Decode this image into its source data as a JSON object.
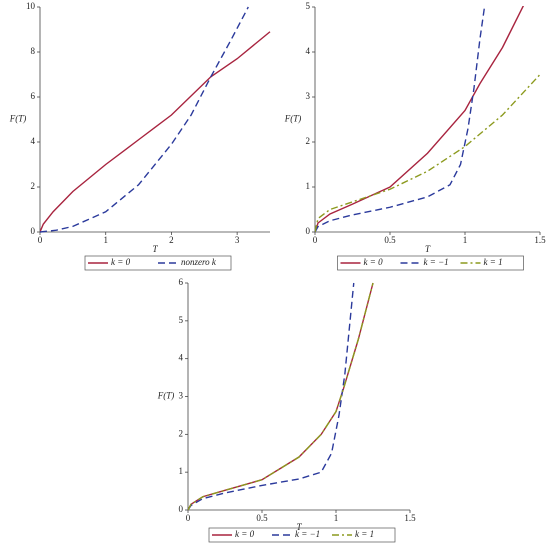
{
  "chart_data": [
    {
      "type": "line",
      "xlabel": "T",
      "ylabel": "F(T)",
      "xlim": [
        0,
        3.5
      ],
      "ylim": [
        0,
        10
      ],
      "xticks": [
        0,
        1,
        2,
        3
      ],
      "yticks": [
        0,
        2,
        4,
        6,
        8,
        10
      ],
      "series": [
        {
          "name": "k = 0",
          "color": "#a8243f",
          "dash": "solid",
          "x": [
            0,
            0.05,
            0.2,
            0.5,
            1,
            1.5,
            2,
            2.6,
            3,
            3.5
          ],
          "values": [
            0,
            0.35,
            0.9,
            1.8,
            3.0,
            4.1,
            5.2,
            6.9,
            7.7,
            8.9
          ]
        },
        {
          "name": "nonzero k",
          "color": "#2b3a9c",
          "dash": "dashed",
          "x": [
            0,
            0.25,
            0.5,
            1,
            1.5,
            2,
            2.3,
            2.6,
            2.9,
            3.17
          ],
          "values": [
            0,
            0.08,
            0.25,
            0.9,
            2.1,
            3.9,
            5.2,
            6.9,
            8.5,
            10
          ]
        }
      ]
    },
    {
      "type": "line",
      "xlabel": "T",
      "ylabel": "F(T)",
      "xlim": [
        0,
        1.5
      ],
      "ylim": [
        0,
        5
      ],
      "xticks": [
        0,
        0.5,
        1,
        1.5
      ],
      "yticks": [
        0,
        1,
        2,
        3,
        4,
        5
      ],
      "series": [
        {
          "name": "k = 0",
          "color": "#a8243f",
          "dash": "solid",
          "x": [
            0,
            0.02,
            0.1,
            0.25,
            0.5,
            0.75,
            1,
            1.1,
            1.25,
            1.4
          ],
          "values": [
            0,
            0.2,
            0.4,
            0.62,
            1.0,
            1.75,
            2.7,
            3.3,
            4.1,
            5.1
          ]
        },
        {
          "name": "k = −1",
          "color": "#2b3a9c",
          "dash": "dashed",
          "x": [
            0,
            0.02,
            0.1,
            0.25,
            0.5,
            0.75,
            0.9,
            0.97,
            1.02,
            1.06,
            1.1,
            1.13
          ],
          "values": [
            0,
            0.12,
            0.25,
            0.38,
            0.55,
            0.78,
            1.05,
            1.5,
            2.3,
            3.2,
            4.3,
            5
          ]
        },
        {
          "name": "k = 1",
          "color": "#8c9a1e",
          "dash": "dashdot",
          "x": [
            0,
            0.02,
            0.1,
            0.25,
            0.5,
            0.75,
            1,
            1.25,
            1.5
          ],
          "values": [
            0,
            0.3,
            0.5,
            0.67,
            0.95,
            1.35,
            1.9,
            2.6,
            3.5
          ]
        }
      ]
    },
    {
      "type": "line",
      "xlabel": "T",
      "ylabel": "F(T)",
      "xlim": [
        0,
        1.5
      ],
      "ylim": [
        0,
        6
      ],
      "xticks": [
        0,
        0.5,
        1,
        1.5
      ],
      "yticks": [
        0,
        1,
        2,
        3,
        4,
        5,
        6
      ],
      "series": [
        {
          "name": "k = 0",
          "color": "#a8243f",
          "dash": "solid",
          "x": [
            0,
            0.02,
            0.1,
            0.25,
            0.5,
            0.75,
            0.9,
            1,
            1.05,
            1.15,
            1.25
          ],
          "values": [
            0,
            0.15,
            0.35,
            0.52,
            0.8,
            1.4,
            2.0,
            2.6,
            3.2,
            4.5,
            6
          ]
        },
        {
          "name": "k = −1",
          "color": "#2b3a9c",
          "dash": "dashed",
          "x": [
            0,
            0.02,
            0.1,
            0.25,
            0.5,
            0.75,
            0.9,
            0.97,
            1.02,
            1.06,
            1.1,
            1.12
          ],
          "values": [
            0,
            0.12,
            0.3,
            0.45,
            0.65,
            0.82,
            1.0,
            1.5,
            2.5,
            3.6,
            5.2,
            6
          ]
        },
        {
          "name": "k = 1",
          "color": "#8c9a1e",
          "dash": "dashdot",
          "x": [
            0,
            0.02,
            0.1,
            0.25,
            0.5,
            0.75,
            0.9,
            1,
            1.05,
            1.15,
            1.25
          ],
          "values": [
            0,
            0.15,
            0.35,
            0.52,
            0.8,
            1.4,
            2.0,
            2.6,
            3.2,
            4.5,
            6
          ]
        }
      ]
    }
  ]
}
